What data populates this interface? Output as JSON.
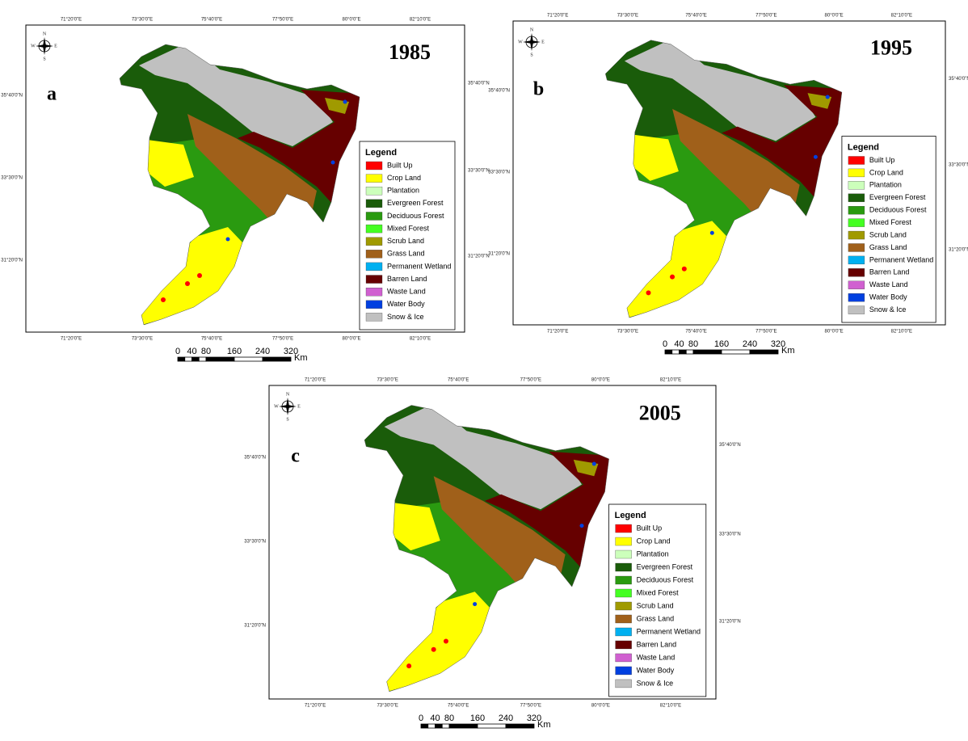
{
  "panels": [
    {
      "label": "a",
      "year": "1985"
    },
    {
      "label": "b",
      "year": "1995"
    },
    {
      "label": "c",
      "year": "2005"
    }
  ],
  "legend": {
    "title": "Legend",
    "items": [
      {
        "label": "Built Up",
        "color": "#ff0000"
      },
      {
        "label": "Crop Land",
        "color": "#ffff00"
      },
      {
        "label": "Plantation",
        "color": "#ccffbb"
      },
      {
        "label": "Evergreen Forest",
        "color": "#1a5c0a"
      },
      {
        "label": "Deciduous Forest",
        "color": "#2a9a10"
      },
      {
        "label": "Mixed Forest",
        "color": "#44ff22"
      },
      {
        "label": "Scrub Land",
        "color": "#a09a00"
      },
      {
        "label": "Grass Land",
        "color": "#a0601a"
      },
      {
        "label": "Permanent Wetland",
        "color": "#00b0f0"
      },
      {
        "label": "Barren Land",
        "color": "#660000"
      },
      {
        "label": "Waste Land",
        "color": "#d060d0"
      },
      {
        "label": "Water Body",
        "color": "#0040e0"
      },
      {
        "label": "Snow & Ice",
        "color": "#c0c0c0"
      }
    ]
  },
  "longitude_labels": [
    "71°20'0\"E",
    "73°30'0\"E",
    "75°40'0\"E",
    "77°50'0\"E",
    "80°0'0\"E",
    "82°10'0\"E"
  ],
  "latitude_labels": [
    "35°40'0\"N",
    "33°30'0\"N",
    "31°20'0\"N"
  ],
  "compass": {
    "north": "N",
    "south": "S",
    "east": "E",
    "west": "W"
  },
  "scale_bar": {
    "ticks": [
      0,
      40,
      80,
      160,
      240,
      320
    ],
    "unit": "Km"
  }
}
